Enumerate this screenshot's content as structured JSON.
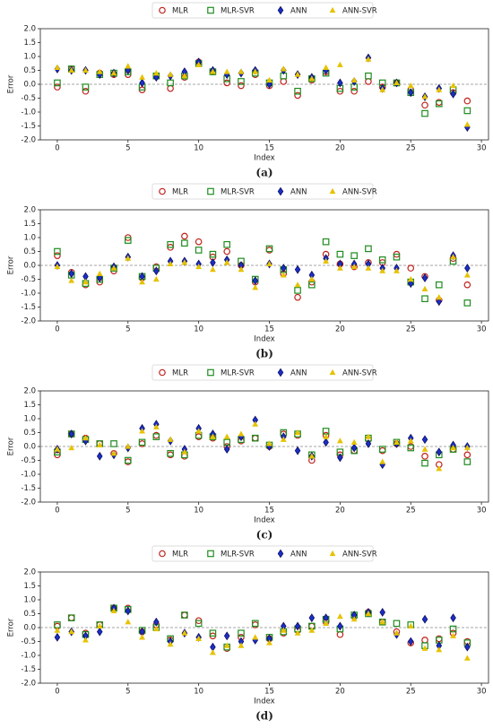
{
  "chart_data": [
    {
      "type": "scatter",
      "caption": "(a)",
      "xlabel": "Index",
      "ylabel": "Error",
      "legend": "top",
      "x": [
        0,
        1,
        2,
        3,
        4,
        5,
        6,
        7,
        8,
        9,
        10,
        11,
        12,
        13,
        14,
        15,
        16,
        17,
        18,
        19,
        20,
        21,
        22,
        23,
        24,
        25,
        26,
        27,
        28,
        29
      ],
      "xlim": [
        -1.2,
        30.5
      ],
      "xticks": [
        0,
        5,
        10,
        15,
        20,
        25,
        30
      ],
      "ylim": [
        -2,
        2
      ],
      "yticks": [
        {
          "value": -2,
          "label": "-2.0"
        },
        -1.5,
        {
          "value": -1,
          "label": "-1.0"
        },
        -0.5,
        {
          "value": 0,
          "label": "0.0"
        },
        0.5,
        {
          "value": 1,
          "label": "1.0"
        },
        1.5,
        {
          "value": 2,
          "label": "2.0"
        }
      ],
      "series": [
        {
          "name": "MLR",
          "color": "#c0201a",
          "marker": "circle",
          "values": [
            -0.1,
            0.55,
            -0.25,
            0.4,
            0.35,
            0.35,
            -0.2,
            0.3,
            -0.15,
            0.25,
            0.8,
            0.45,
            0.05,
            -0.05,
            0.35,
            -0.05,
            0.1,
            -0.4,
            0.15,
            0.45,
            -0.25,
            -0.25,
            0.1,
            -0.1,
            0.05,
            -0.2,
            -0.75,
            -0.65,
            -0.3,
            -0.6
          ]
        },
        {
          "name": "MLR-SVR",
          "color": "#1e8c1e",
          "marker": "square",
          "values": [
            0.05,
            0.55,
            -0.1,
            0.35,
            0.4,
            0.45,
            -0.1,
            0.3,
            0.05,
            0.3,
            0.75,
            0.45,
            0.2,
            0.1,
            0.4,
            0.05,
            0.3,
            -0.25,
            0.2,
            0.4,
            -0.15,
            -0.1,
            0.3,
            0.05,
            0.05,
            -0.3,
            -1.05,
            -0.7,
            -0.2,
            -0.95
          ]
        },
        {
          "name": "ANN",
          "color": "#1a2fc8",
          "marker": "diamond",
          "values": [
            0.55,
            0.5,
            0.5,
            0.35,
            0.4,
            0.5,
            0.05,
            0.25,
            0.3,
            0.45,
            0.8,
            0.5,
            0.35,
            0.4,
            0.5,
            0,
            0.5,
            0.35,
            0.25,
            0.5,
            0.05,
            0.1,
            0.95,
            -0.15,
            0.05,
            -0.3,
            -0.45,
            -0.15,
            -0.35,
            -1.55
          ]
        },
        {
          "name": "ANN-SVR",
          "color": "#e6c200",
          "marker": "triangle",
          "values": [
            0.6,
            0.5,
            0.5,
            0.45,
            0.4,
            0.65,
            0.25,
            0.4,
            0.35,
            0.3,
            0.7,
            0.45,
            0.45,
            0.45,
            0.45,
            0.15,
            0.55,
            0.35,
            0.2,
            0.6,
            0.7,
            0.15,
            0.9,
            -0.2,
            0.05,
            -0.05,
            -0.45,
            -0.2,
            -0.05,
            -1.45
          ]
        }
      ]
    },
    {
      "type": "scatter",
      "caption": "(b)",
      "xlabel": "Index",
      "ylabel": "Error",
      "legend": "top",
      "x": [
        0,
        1,
        2,
        3,
        4,
        5,
        6,
        7,
        8,
        9,
        10,
        11,
        12,
        13,
        14,
        15,
        16,
        17,
        18,
        19,
        20,
        21,
        22,
        23,
        24,
        25,
        26,
        27,
        28,
        29
      ],
      "xlim": [
        -1.2,
        30.5
      ],
      "xticks": [
        0,
        5,
        10,
        15,
        20,
        25,
        30
      ],
      "ylim": [
        -2,
        2
      ],
      "yticks": [
        {
          "value": -2,
          "label": "-2.0"
        },
        -1.5,
        {
          "value": -1,
          "label": "-1.0"
        },
        -0.5,
        {
          "value": 0,
          "label": "0.0"
        },
        0.5,
        {
          "value": 1,
          "label": "1.0"
        },
        1.5,
        {
          "value": 2,
          "label": "2.0"
        }
      ],
      "series": [
        {
          "name": "MLR",
          "color": "#c0201a",
          "marker": "circle",
          "values": [
            0.35,
            -0.25,
            -0.7,
            -0.6,
            -0.2,
            1.0,
            -0.45,
            -0.05,
            0.65,
            1.05,
            0.85,
            0.3,
            0.5,
            0,
            -0.6,
            0.55,
            -0.3,
            -1.15,
            -0.6,
            0.4,
            0.05,
            -0.05,
            0.1,
            0.1,
            0.4,
            -0.1,
            -0.4,
            -1.25,
            0.25,
            -0.7
          ]
        },
        {
          "name": "MLR-SVR",
          "color": "#1e8c1e",
          "marker": "square",
          "values": [
            0.5,
            -0.35,
            -0.65,
            -0.5,
            -0.1,
            0.9,
            -0.4,
            -0.1,
            0.75,
            0.8,
            0.55,
            0.4,
            0.75,
            0.15,
            -0.5,
            0.6,
            -0.15,
            -0.9,
            -0.7,
            0.85,
            0.4,
            0.35,
            0.6,
            0.2,
            0.3,
            -0.6,
            -1.2,
            -0.7,
            0.15,
            -1.35
          ]
        },
        {
          "name": "ANN",
          "color": "#1a2fc8",
          "marker": "diamond",
          "values": [
            0,
            -0.3,
            -0.4,
            -0.45,
            -0.05,
            0.3,
            -0.4,
            -0.2,
            0.15,
            0.15,
            0.05,
            0.1,
            0.2,
            0,
            -0.55,
            0.05,
            -0.1,
            -0.15,
            -0.35,
            0.25,
            0.05,
            0.05,
            0.05,
            -0.1,
            -0.1,
            -0.65,
            -0.45,
            -1.3,
            0.35,
            -0.1
          ]
        },
        {
          "name": "ANN-SVR",
          "color": "#e6c200",
          "marker": "triangle",
          "values": [
            -0.05,
            -0.55,
            -0.6,
            -0.3,
            -0.1,
            0.25,
            -0.6,
            -0.5,
            0.05,
            0.1,
            -0.05,
            -0.15,
            0.1,
            -0.15,
            -0.8,
            0.05,
            -0.35,
            -0.7,
            -0.5,
            0.15,
            -0.1,
            -0.05,
            -0.1,
            -0.2,
            -0.2,
            -0.5,
            -0.85,
            -1.15,
            0.3,
            -0.35
          ]
        }
      ]
    },
    {
      "type": "scatter",
      "caption": "(c)",
      "xlabel": "Index",
      "ylabel": "Error",
      "legend": "top",
      "x": [
        0,
        1,
        2,
        3,
        4,
        5,
        6,
        7,
        8,
        9,
        10,
        11,
        12,
        13,
        14,
        15,
        16,
        17,
        18,
        19,
        20,
        21,
        22,
        23,
        24,
        25,
        26,
        27,
        28,
        29
      ],
      "xlim": [
        -1.2,
        30.5
      ],
      "xticks": [
        0,
        5,
        10,
        15,
        20,
        25,
        30
      ],
      "ylim": [
        -2,
        2
      ],
      "yticks": [
        {
          "value": -2,
          "label": "-2.0"
        },
        -1.5,
        {
          "value": -1,
          "label": "-1.0"
        },
        -0.5,
        {
          "value": 0,
          "label": "0.0"
        },
        0.5,
        {
          "value": 1,
          "label": "1.0"
        },
        1.5,
        {
          "value": 2,
          "label": "2.0"
        }
      ],
      "series": [
        {
          "name": "MLR",
          "color": "#c0201a",
          "marker": "circle",
          "values": [
            -0.3,
            0.45,
            0.3,
            0.1,
            -0.25,
            -0.55,
            0.1,
            0.4,
            -0.3,
            -0.35,
            0.35,
            0.3,
            0,
            0.2,
            0.3,
            0,
            0.45,
            0.4,
            -0.5,
            0.4,
            -0.3,
            -0.15,
            0.25,
            -0.15,
            0.1,
            0,
            -0.35,
            -0.65,
            -0.1,
            -0.3
          ]
        },
        {
          "name": "MLR-SVR",
          "color": "#1e8c1e",
          "marker": "square",
          "values": [
            -0.2,
            0.45,
            0.25,
            0.1,
            0.1,
            -0.5,
            0.15,
            0.35,
            -0.25,
            -0.3,
            0.4,
            0.35,
            0.15,
            0.25,
            0.3,
            0.05,
            0.5,
            0.45,
            -0.3,
            0.55,
            -0.2,
            -0.15,
            0.3,
            -0.1,
            0.15,
            -0.05,
            -0.6,
            -0.3,
            -0.1,
            -0.55
          ]
        },
        {
          "name": "ANN",
          "color": "#1a2fc8",
          "marker": "diamond",
          "values": [
            -0.1,
            0.45,
            0.2,
            -0.35,
            -0.3,
            -0.05,
            0.65,
            0.8,
            0.2,
            -0.1,
            0.65,
            0.45,
            -0.1,
            0.35,
            0.95,
            0,
            0.35,
            -0.15,
            -0.35,
            0.15,
            -0.4,
            -0.05,
            0.1,
            -0.65,
            0.1,
            0.3,
            0.25,
            -0.2,
            0.05,
            0
          ]
        },
        {
          "name": "ANN-SVR",
          "color": "#e6c200",
          "marker": "triangle",
          "values": [
            -0.1,
            -0.05,
            0.3,
            0.05,
            -0.25,
            0,
            0.55,
            0.7,
            0.25,
            -0.2,
            0.55,
            0.35,
            0.35,
            0.45,
            0.8,
            0.1,
            0.25,
            0.5,
            -0.35,
            0.35,
            0.2,
            0.15,
            0.35,
            -0.55,
            0.15,
            0.2,
            -0.1,
            -0.8,
            -0.05,
            -0.05
          ]
        }
      ]
    },
    {
      "type": "scatter",
      "caption": "(d)",
      "xlabel": "Index",
      "ylabel": "Error",
      "legend": "top",
      "x": [
        0,
        1,
        2,
        3,
        4,
        5,
        6,
        7,
        8,
        9,
        10,
        11,
        12,
        13,
        14,
        15,
        16,
        17,
        18,
        19,
        20,
        21,
        22,
        23,
        24,
        25,
        26,
        27,
        28,
        29
      ],
      "xlim": [
        -1.2,
        30.5
      ],
      "xticks": [
        0,
        5,
        10,
        15,
        20,
        25,
        30
      ],
      "ylim": [
        -2,
        2
      ],
      "yticks": [
        {
          "value": -2,
          "label": "-2.0"
        },
        -1.5,
        {
          "value": -1,
          "label": "-1.0"
        },
        -0.5,
        {
          "value": 0,
          "label": "0.0"
        },
        0.5,
        {
          "value": 1,
          "label": "1.0"
        },
        1.5,
        {
          "value": 2,
          "label": "2.0"
        }
      ],
      "series": [
        {
          "name": "MLR",
          "color": "#c0201a",
          "marker": "circle",
          "values": [
            0.05,
            0.35,
            -0.2,
            0.1,
            0.7,
            0.7,
            -0.15,
            0.1,
            -0.45,
            0.45,
            0.25,
            -0.3,
            -0.75,
            -0.35,
            0.1,
            -0.4,
            -0.2,
            -0.1,
            0.05,
            0.2,
            -0.25,
            0.4,
            0.55,
            0.2,
            -0.15,
            -0.55,
            -0.45,
            -0.4,
            -0.2,
            -0.5
          ]
        },
        {
          "name": "MLR-SVR",
          "color": "#1e8c1e",
          "marker": "square",
          "values": [
            0.1,
            0.35,
            -0.25,
            0.1,
            0.7,
            0.65,
            -0.1,
            0,
            -0.4,
            0.45,
            0.15,
            -0.2,
            -0.7,
            -0.2,
            0.15,
            -0.35,
            -0.15,
            -0.05,
            0.05,
            0.3,
            -0.05,
            0.45,
            0.5,
            0.2,
            0.15,
            0.1,
            -0.65,
            -0.45,
            -0.05,
            -0.55
          ]
        },
        {
          "name": "ANN",
          "color": "#1a2fc8",
          "marker": "diamond",
          "values": [
            -0.35,
            -0.15,
            -0.3,
            -0.15,
            0.7,
            0.6,
            -0.15,
            0.2,
            -0.5,
            -0.2,
            -0.35,
            -0.7,
            -0.3,
            -0.5,
            -0.45,
            -0.4,
            0.05,
            0.05,
            0.35,
            0.35,
            0.05,
            0.45,
            0.55,
            0.55,
            -0.25,
            -0.5,
            0.3,
            -0.65,
            0.35,
            -0.7
          ]
        },
        {
          "name": "ANN-SVR",
          "color": "#e6c200",
          "marker": "triangle",
          "values": [
            -0.1,
            -0.15,
            -0.45,
            0.05,
            0.6,
            0.2,
            -0.35,
            -0.05,
            -0.6,
            -0.2,
            -0.4,
            -0.9,
            -0.65,
            -0.65,
            -0.35,
            -0.55,
            -0.1,
            -0.2,
            -0.1,
            0.15,
            0.4,
            0.3,
            0.5,
            0.2,
            -0.2,
            0.05,
            -0.75,
            -0.8,
            -0.3,
            -1.1
          ]
        }
      ]
    }
  ]
}
